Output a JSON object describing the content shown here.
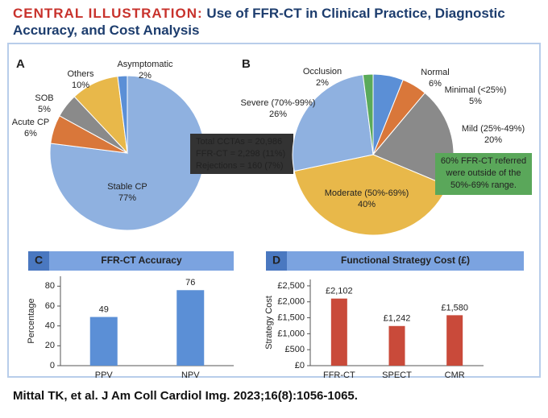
{
  "header": {
    "label": "CENTRAL ILLUSTRATION:",
    "title": "Use of FFR-CT in Clinical Practice, Diagnostic Accuracy, and Cost Analysis"
  },
  "footer": "Mittal TK, et al. J Am Coll Cardiol Img. 2023;16(8):1056-1065.",
  "chart_data": [
    {
      "type": "pie",
      "panel": "A",
      "categories": [
        "Stable CP",
        "Acute CP",
        "SOB",
        "Others",
        "Asymptomatic"
      ],
      "values": [
        77,
        6,
        5,
        10,
        2
      ],
      "value_labels": [
        "77%",
        "6%",
        "5%",
        "10%",
        "2%"
      ],
      "colors": [
        "#8fb1e0",
        "#d9773a",
        "#8a8a8a",
        "#e8b84a",
        "#5b8fd6"
      ],
      "annotations": [
        "Total CCTAs = 20,986",
        "FFR-CT = 2,298 (11%)",
        "Rejections = 160 (7%)"
      ]
    },
    {
      "type": "pie",
      "panel": "B",
      "categories": [
        "Normal",
        "Minimal (<25%)",
        "Mild (25%-49%)",
        "Moderate (50%-69%)",
        "Severe (70%-99%)",
        "Occlusion"
      ],
      "values": [
        6,
        5,
        20,
        40,
        26,
        2
      ],
      "value_labels": [
        "6%",
        "5%",
        "20%",
        "40%",
        "26%",
        "2%"
      ],
      "colors": [
        "#5b8fd6",
        "#d9773a",
        "#8a8a8a",
        "#e8b84a",
        "#8fb1e0",
        "#5aaa5a"
      ],
      "annotations": [
        "60% FFR-CT referred",
        "were outside of the",
        "50%-69% range."
      ]
    },
    {
      "type": "bar",
      "panel": "C",
      "title": "FFR-CT Accuracy",
      "ylabel": "Percentage",
      "categories": [
        "PPV",
        "NPV"
      ],
      "values": [
        49,
        76
      ],
      "color": "#5b8fd6",
      "ylim": [
        0,
        90
      ],
      "yticks": [
        0,
        20,
        40,
        60,
        80
      ]
    },
    {
      "type": "bar",
      "panel": "D",
      "title": "Functional Strategy Cost (£)",
      "ylabel": "Strategy Cost",
      "categories": [
        "FFR-CT",
        "SPECT",
        "CMR"
      ],
      "values": [
        2102,
        1242,
        1580
      ],
      "value_labels": [
        "£2,102",
        "£1,242",
        "£1,580"
      ],
      "color": "#c94a3a",
      "ylim": [
        0,
        2700
      ],
      "yticks": [
        {
          "value": 0,
          "label": "£0"
        },
        {
          "value": 500,
          "label": "£500"
        },
        {
          "value": 1000,
          "label": "£1,000"
        },
        {
          "value": 1500,
          "label": "£1,500"
        },
        {
          "value": 2000,
          "label": "£2,000"
        },
        {
          "value": 2500,
          "label": "£2,500"
        }
      ]
    }
  ]
}
